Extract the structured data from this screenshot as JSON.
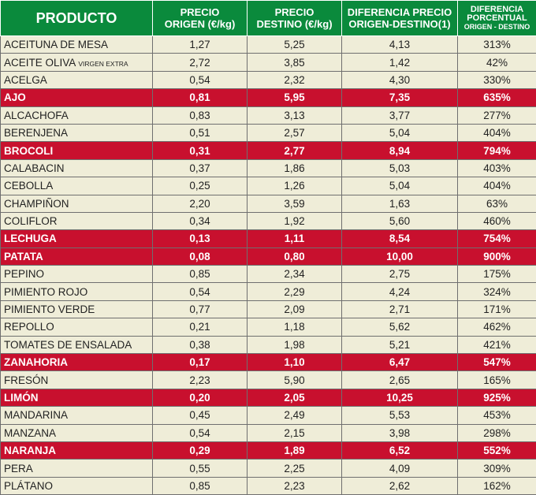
{
  "headers": {
    "producto": "PRODUCTO",
    "origen_1": "PRECIO",
    "origen_2": "ORIGEN (€/kg)",
    "destino_1": "PRECIO",
    "destino_2": "DESTINO (€/kg)",
    "dif_1": "DIFERENCIA PRECIO",
    "dif_2": "ORIGEN-DESTINO(1)",
    "pct_1": "DIFERENCIA",
    "pct_2": "PORCENTUAL",
    "pct_3": "ORIGEN - DESTINO"
  },
  "colors": {
    "header": "#0a8a3c",
    "row": "#efedd8",
    "highlight": "#c8102e"
  },
  "rows": [
    {
      "name": "ACEITUNA DE MESA",
      "sub": "",
      "o": "1,27",
      "d": "5,25",
      "diff": "4,13",
      "pct": "313%",
      "hl": false
    },
    {
      "name": "ACEITE OLIVA",
      "sub": "VIRGEN EXTRA",
      "o": "2,72",
      "d": "3,85",
      "diff": "1,42",
      "pct": "42%",
      "hl": false
    },
    {
      "name": "ACELGA",
      "sub": "",
      "o": "0,54",
      "d": "2,32",
      "diff": "4,30",
      "pct": "330%",
      "hl": false
    },
    {
      "name": "AJO",
      "sub": "",
      "o": "0,81",
      "d": "5,95",
      "diff": "7,35",
      "pct": "635%",
      "hl": true
    },
    {
      "name": "ALCACHOFA",
      "sub": "",
      "o": "0,83",
      "d": "3,13",
      "diff": "3,77",
      "pct": "277%",
      "hl": false
    },
    {
      "name": "BERENJENA",
      "sub": "",
      "o": "0,51",
      "d": "2,57",
      "diff": "5,04",
      "pct": "404%",
      "hl": false
    },
    {
      "name": "BROCOLI",
      "sub": "",
      "o": "0,31",
      "d": "2,77",
      "diff": "8,94",
      "pct": "794%",
      "hl": true
    },
    {
      "name": "CALABACIN",
      "sub": "",
      "o": "0,37",
      "d": "1,86",
      "diff": "5,03",
      "pct": "403%",
      "hl": false
    },
    {
      "name": "CEBOLLA",
      "sub": "",
      "o": "0,25",
      "d": "1,26",
      "diff": "5,04",
      "pct": "404%",
      "hl": false
    },
    {
      "name": "CHAMPIÑON",
      "sub": "",
      "o": "2,20",
      "d": "3,59",
      "diff": "1,63",
      "pct": "63%",
      "hl": false
    },
    {
      "name": "COLIFLOR",
      "sub": "",
      "o": "0,34",
      "d": "1,92",
      "diff": "5,60",
      "pct": "460%",
      "hl": false
    },
    {
      "name": "LECHUGA",
      "sub": "",
      "o": "0,13",
      "d": "1,11",
      "diff": "8,54",
      "pct": "754%",
      "hl": true
    },
    {
      "name": "PATATA",
      "sub": "",
      "o": "0,08",
      "d": "0,80",
      "diff": "10,00",
      "pct": "900%",
      "hl": true
    },
    {
      "name": "PEPINO",
      "sub": "",
      "o": "0,85",
      "d": "2,34",
      "diff": "2,75",
      "pct": "175%",
      "hl": false
    },
    {
      "name": "PIMIENTO ROJO",
      "sub": "",
      "o": "0,54",
      "d": "2,29",
      "diff": "4,24",
      "pct": "324%",
      "hl": false
    },
    {
      "name": "PIMIENTO VERDE",
      "sub": "",
      "o": "0,77",
      "d": "2,09",
      "diff": "2,71",
      "pct": "171%",
      "hl": false
    },
    {
      "name": "REPOLLO",
      "sub": "",
      "o": "0,21",
      "d": "1,18",
      "diff": "5,62",
      "pct": "462%",
      "hl": false
    },
    {
      "name": "TOMATES DE ENSALADA",
      "sub": "",
      "o": "0,38",
      "d": "1,98",
      "diff": "5,21",
      "pct": "421%",
      "hl": false
    },
    {
      "name": "ZANAHORIA",
      "sub": "",
      "o": "0,17",
      "d": "1,10",
      "diff": "6,47",
      "pct": "547%",
      "hl": true
    },
    {
      "name": "FRESÓN",
      "sub": "",
      "o": "2,23",
      "d": "5,90",
      "diff": "2,65",
      "pct": "165%",
      "hl": false
    },
    {
      "name": "LIMÓN",
      "sub": "",
      "o": "0,20",
      "d": "2,05",
      "diff": "10,25",
      "pct": "925%",
      "hl": true
    },
    {
      "name": "MANDARINA",
      "sub": "",
      "o": "0,45",
      "d": "2,49",
      "diff": "5,53",
      "pct": "453%",
      "hl": false
    },
    {
      "name": "MANZANA",
      "sub": "",
      "o": "0,54",
      "d": "2,15",
      "diff": "3,98",
      "pct": "298%",
      "hl": false
    },
    {
      "name": "NARANJA",
      "sub": "",
      "o": "0,29",
      "d": "1,89",
      "diff": "6,52",
      "pct": "552%",
      "hl": true
    },
    {
      "name": "PERA",
      "sub": "",
      "o": "0,55",
      "d": "2,25",
      "diff": "4,09",
      "pct": "309%",
      "hl": false
    },
    {
      "name": "PLÁTANO",
      "sub": "",
      "o": "0,85",
      "d": "2,23",
      "diff": "2,62",
      "pct": "162%",
      "hl": false
    }
  ]
}
